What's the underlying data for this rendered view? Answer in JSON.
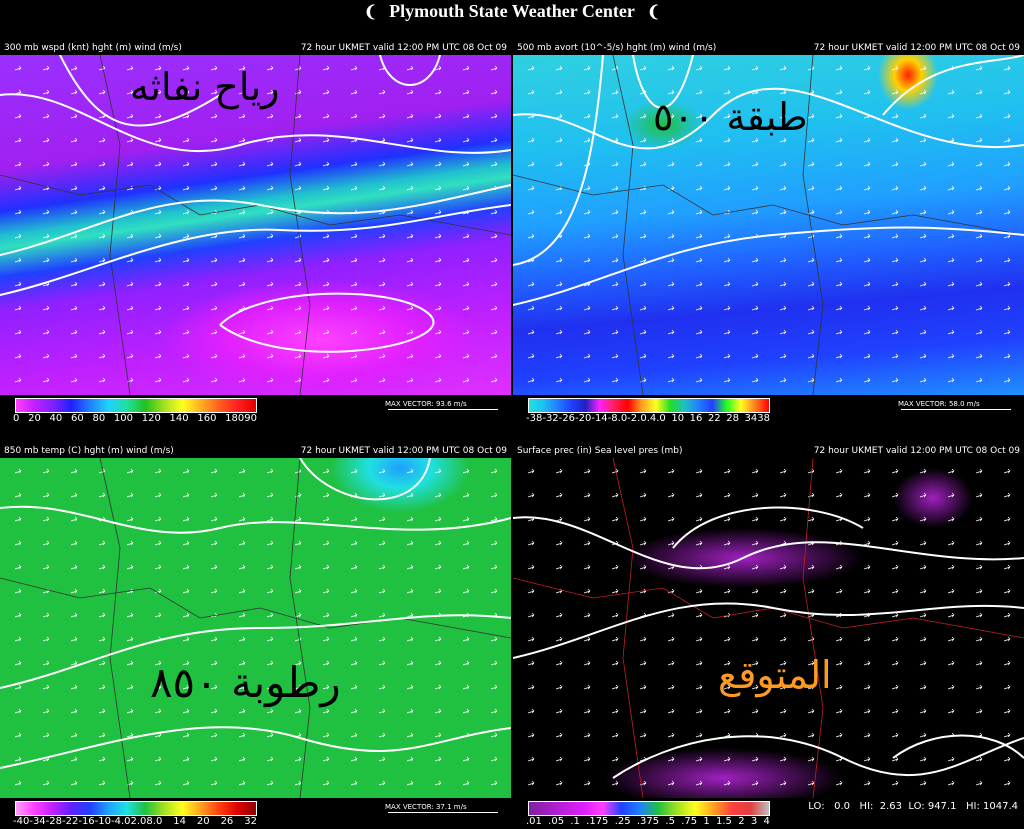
{
  "header": {
    "title": "Plymouth State Weather Center"
  },
  "panels": [
    {
      "left_label": "300 mb wspd (knt) hght (m) wind (m/s)",
      "right_label": "72 hour UKMET valid 12:00 PM UTC 08 Oct 09",
      "overlay": "رياح نفاثه",
      "colorbar_labels": [
        "0",
        "20",
        "40",
        "60",
        "80",
        "100",
        "120",
        "140",
        "160",
        "18090"
      ],
      "max_vector": "MAX VECTOR: 93.6 m/s"
    },
    {
      "left_label": "500 mb avort (10^-5/s) hght (m) wind (m/s)",
      "right_label": "72 hour UKMET valid 12:00 PM UTC 08 Oct 09",
      "overlay": "طبقة ٥٠٠",
      "colorbar_labels": [
        "-38-32-26-20-14-8.0-2.0.4.0",
        "10",
        "16",
        "22",
        "28",
        "3438"
      ],
      "max_vector": "MAX VECTOR: 58.0 m/s"
    },
    {
      "left_label": "850 mb temp (C) hght (m) wind (m/s)",
      "right_label": "72 hour UKMET valid 12:00 PM UTC 08 Oct 09",
      "overlay": "رطوبة ٨٥٠",
      "colorbar_labels": [
        "-40-34-28-22-16-10-4.02.08.0",
        "14",
        "20",
        "26",
        "32"
      ],
      "max_vector": "MAX VECTOR: 37.1 m/s"
    },
    {
      "left_label": "Surface prec (in) Sea level pres (mb)",
      "right_label": "72 hour UKMET valid 12:00 PM UTC 08 Oct 09",
      "overlay": "المتوقع",
      "colorbar_labels": [
        ".01",
        ".05",
        ".1",
        ".175",
        ".25",
        ".375",
        ".5",
        ".75",
        "1",
        "1.5",
        "2",
        "3",
        "4"
      ],
      "stats": "LO:   0.0   HI:  2.63  LO: 947.1   HI: 1047.4"
    }
  ]
}
